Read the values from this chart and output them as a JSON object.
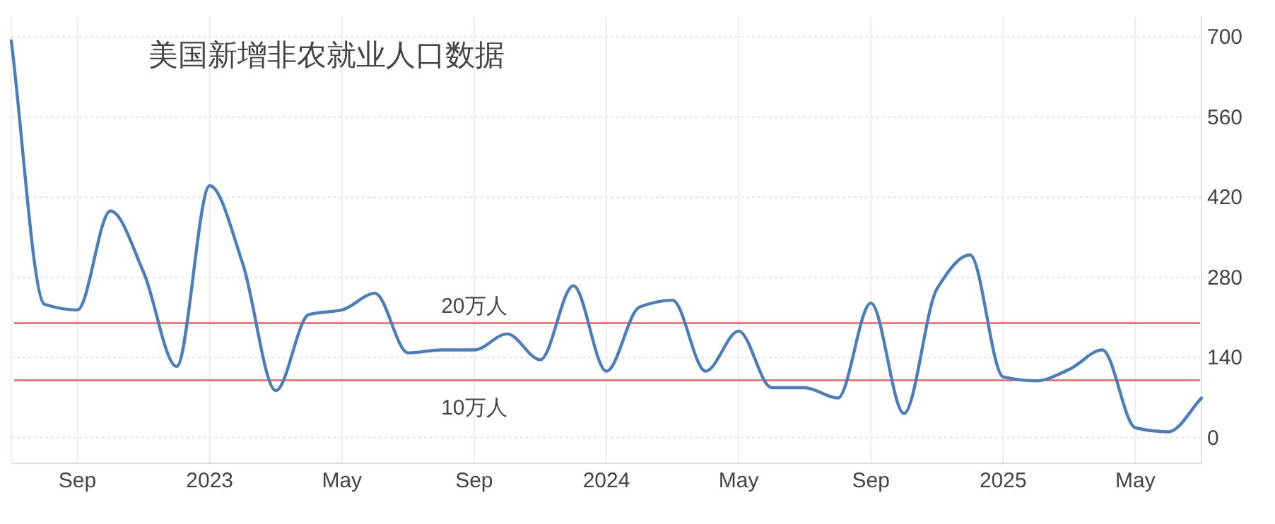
{
  "chart_data": {
    "type": "line",
    "title": "美国新增非农就业人口数据",
    "x": [
      "2022-07",
      "2022-08",
      "2022-09",
      "2022-10",
      "2022-11",
      "2022-12",
      "2023-01",
      "2023-02",
      "2023-03",
      "2023-04",
      "2023-05",
      "2023-06",
      "2023-07",
      "2023-08",
      "2023-09",
      "2023-10",
      "2023-11",
      "2023-12",
      "2024-01",
      "2024-02",
      "2024-03",
      "2024-04",
      "2024-05",
      "2024-06",
      "2024-07",
      "2024-08",
      "2024-09",
      "2024-10",
      "2024-11",
      "2024-12",
      "2025-01",
      "2025-02",
      "2025-03",
      "2025-04",
      "2025-05",
      "2025-06",
      "2025-07"
    ],
    "series": [
      {
        "color": "#4a7ebb",
        "values": [
          693,
          233,
          223,
          396,
          289,
          124,
          440,
          304,
          82,
          215,
          223,
          252,
          148,
          153,
          153,
          181,
          136,
          265,
          116,
          228,
          240,
          116,
          186,
          87,
          87,
          69,
          235,
          42,
          260,
          319,
          106,
          99,
          119,
          153,
          17,
          10,
          69
        ]
      }
    ],
    "xlim": [
      "2022-07",
      "2025-07"
    ],
    "xticks": [
      {
        "value": "2022-09",
        "label": "Sep"
      },
      {
        "value": "2023-01",
        "label": "2023"
      },
      {
        "value": "2023-05",
        "label": "May"
      },
      {
        "value": "2023-09",
        "label": "Sep"
      },
      {
        "value": "2024-01",
        "label": "2024"
      },
      {
        "value": "2024-05",
        "label": "May"
      },
      {
        "value": "2024-09",
        "label": "Sep"
      },
      {
        "value": "2025-01",
        "label": "2025"
      },
      {
        "value": "2025-05",
        "label": "May"
      }
    ],
    "ylim": [
      -45,
      735
    ],
    "yticks": [
      0,
      140,
      280,
      420,
      560,
      700
    ],
    "ref_lines": [
      {
        "axis": "y",
        "value": 200,
        "label": "20万人",
        "color": "#f06060"
      },
      {
        "axis": "y",
        "value": 100,
        "label": "10万人",
        "color": "#f06060"
      }
    ],
    "grid": true,
    "marker": "none",
    "line_style": "solid"
  }
}
